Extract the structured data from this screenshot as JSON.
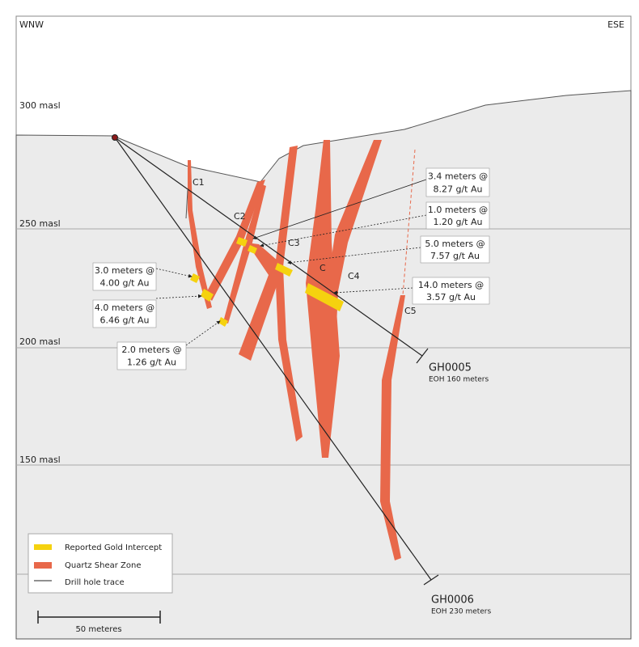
{
  "header": {
    "left": "WNW",
    "right": "ESE"
  },
  "elevations": [
    "300 masl",
    "250 masl",
    "200 masl",
    "150 masl"
  ],
  "zones": [
    "C1",
    "C2",
    "C3",
    "C",
    "C4",
    "C5"
  ],
  "intercepts": [
    [
      "3.4 meters @",
      "8.27 g/t Au"
    ],
    [
      "1.0 meters @",
      "1.20 g/t Au"
    ],
    [
      "5.0 meters @",
      "7.57 g/t Au"
    ],
    [
      "14.0 meters @",
      "3.57 g/t Au"
    ],
    [
      "3.0 meters @",
      "4.00 g/t Au"
    ],
    [
      "4.0 meters @",
      "6.46 g/t Au"
    ],
    [
      "2.0 meters @",
      "1.26 g/t Au"
    ]
  ],
  "drill_holes": [
    {
      "name": "GH0005",
      "note": "EOH 160 meters"
    },
    {
      "name": "GH0006",
      "note": "EOH 230 meters"
    }
  ],
  "legend": [
    "Reported Gold Intercept",
    "Quartz Shear Zone",
    "Drill hole trace"
  ],
  "scale": "50 meteres"
}
